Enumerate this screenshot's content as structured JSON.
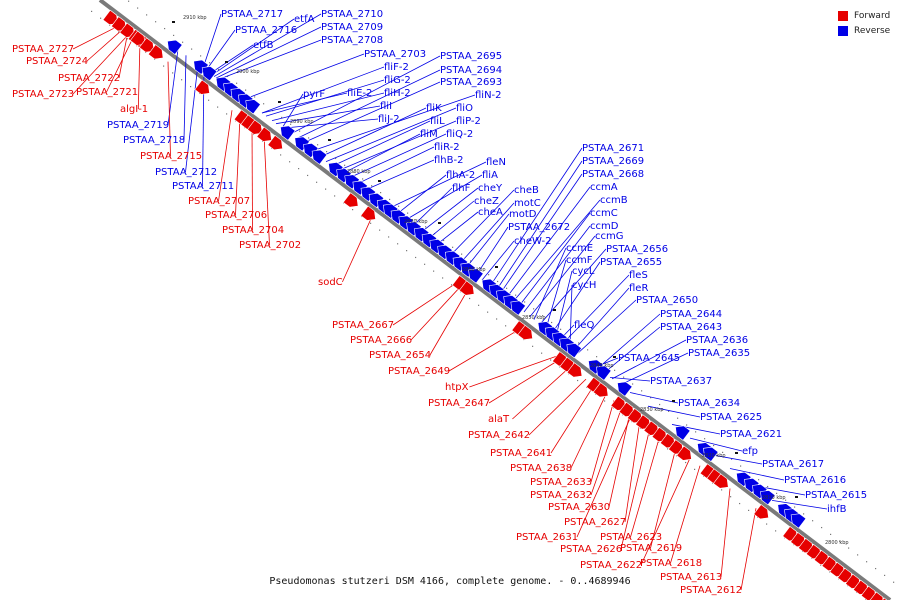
{
  "legend": {
    "forward_label": "Forward",
    "reverse_label": "Reverse",
    "forward_color": "#e60000",
    "reverse_color": "#0000e6"
  },
  "caption": "Pseudomonas stutzeri DSM 4166, complete genome. - 0..4689946",
  "colors": {
    "axis": "#7a7a7a",
    "leader_forward": "#e60000",
    "leader_reverse": "#0000e6"
  },
  "ticks": [
    "2910 kbp",
    "2900 kbp",
    "2890 kbp",
    "2880 kbp",
    "2870 kbp",
    "2860 kbp",
    "2850 kbp",
    "2840 kbp",
    "2830 kbp",
    "2820 kbp",
    "2810 kbp",
    "2800 kbp"
  ],
  "forward_genes": [
    "PSTAA_2727",
    "PSTAA_2724",
    "PSTAA_2722",
    "PSTAA_2723",
    "PSTAA_2721",
    "algI-1",
    "PSTAA_2715",
    "PSTAA_2707",
    "PSTAA_2706",
    "PSTAA_2704",
    "PSTAA_2702",
    "sodC",
    "PSTAA_2667",
    "PSTAA_2666",
    "PSTAA_2654",
    "PSTAA_2649",
    "htpX",
    "PSTAA_2647",
    "alaT",
    "PSTAA_2642",
    "PSTAA_2641",
    "PSTAA_2638",
    "PSTAA_2633",
    "PSTAA_2632",
    "PSTAA_2630",
    "PSTAA_2627",
    "PSTAA_2631",
    "PSTAA_2626",
    "PSTAA_2623",
    "PSTAA_2619",
    "PSTAA_2622",
    "PSTAA_2618",
    "PSTAA_2613",
    "PSTAA_2612"
  ],
  "reverse_genes": [
    "PSTAA_2717",
    "etfA",
    "PSTAA_2710",
    "PSTAA_2716",
    "PSTAA_2709",
    "etfB",
    "PSTAA_2708",
    "PSTAA_2719",
    "PSTAA_2718",
    "PSTAA_2712",
    "PSTAA_2711",
    "PSTAA_2703",
    "fliF-2",
    "fliG-2",
    "fliH-2",
    "pyrF",
    "fliE-2",
    "fliI",
    "fliJ-2",
    "PSTAA_2695",
    "PSTAA_2694",
    "PSTAA_2693",
    "fliN-2",
    "fliK",
    "fliO",
    "fliL",
    "fliP-2",
    "fliM",
    "fliQ-2",
    "fliR-2",
    "flhB-2",
    "fleN",
    "flhA-2",
    "fliA",
    "flhF",
    "cheY",
    "cheZ",
    "cheA",
    "cheB",
    "motC",
    "motD",
    "PSTAA_2672",
    "cheW-2",
    "PSTAA_2671",
    "PSTAA_2669",
    "PSTAA_2668",
    "ccmA",
    "ccmB",
    "ccmC",
    "ccmD",
    "ccmG",
    "ccmE",
    "PSTAA_2656",
    "ccmF",
    "PSTAA_2655",
    "cycL",
    "fleS",
    "cycH",
    "fleR",
    "PSTAA_2650",
    "fleQ",
    "PSTAA_2644",
    "PSTAA_2643",
    "PSTAA_2636",
    "PSTAA_2645",
    "PSTAA_2635",
    "PSTAA_2637",
    "PSTAA_2634",
    "PSTAA_2625",
    "PSTAA_2621",
    "efp",
    "PSTAA_2617",
    "PSTAA_2616",
    "PSTAA_2615",
    "ihfB"
  ]
}
